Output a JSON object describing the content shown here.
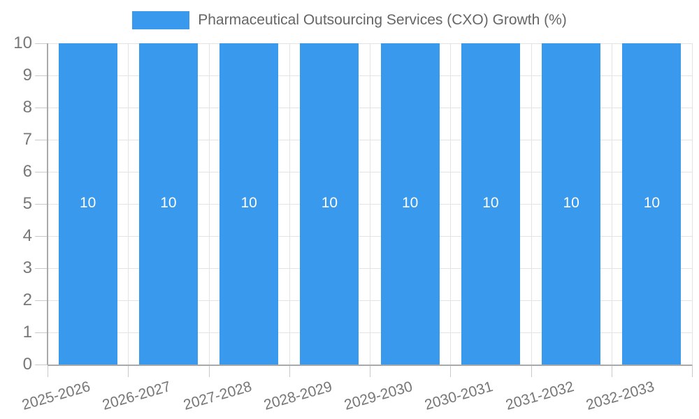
{
  "chart_data": {
    "type": "bar",
    "title": "Pharmaceutical Outsourcing Services (CXO) Growth (%)",
    "legend": [
      "Pharmaceutical Outsourcing Services (CXO) Growth (%)"
    ],
    "legend_position": "top-center",
    "categories": [
      "2025-2026",
      "2026-2027",
      "2027-2028",
      "2028-2029",
      "2029-2030",
      "2030-2031",
      "2031-2032",
      "2032-2033"
    ],
    "values": [
      10,
      10,
      10,
      10,
      10,
      10,
      10,
      10
    ],
    "bar_value_labels": [
      "10",
      "10",
      "10",
      "10",
      "10",
      "10",
      "10",
      "10"
    ],
    "xlabel": "",
    "ylabel": "",
    "ylim": [
      0,
      10
    ],
    "yticks": [
      0,
      1,
      2,
      3,
      4,
      5,
      6,
      7,
      8,
      9,
      10
    ],
    "grid": true,
    "x_tick_rotation_deg": -16
  },
  "colors": {
    "bar": "#3999ec",
    "bar_value_label": "#ffffff",
    "grid_line": "#e3e3e3",
    "tick_stub": "#c9c9c9",
    "axis_line": "#a9a9a9",
    "tick_label": "#777777",
    "legend_label": "#666666",
    "background": "#ffffff"
  }
}
